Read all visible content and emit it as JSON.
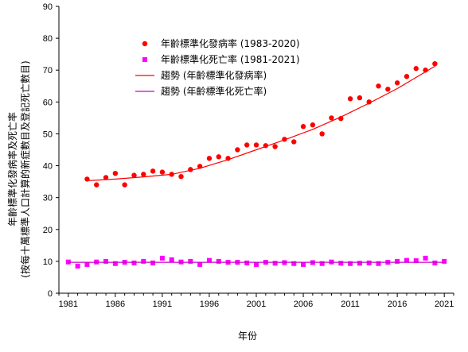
{
  "chart_data": {
    "type": "scatter",
    "title": "",
    "xlabel": "年份",
    "ylabel": [
      "年齡標準化發病率及死亡率",
      "(按每十萬標準人口計算的新症數目及登記死亡數目)"
    ],
    "xlim": [
      1980,
      2022
    ],
    "ylim": [
      0,
      90
    ],
    "x_ticks": [
      1981,
      1986,
      1991,
      1996,
      2001,
      2006,
      2011,
      2016,
      2021
    ],
    "y_ticks": [
      0,
      10,
      20,
      30,
      40,
      50,
      60,
      70,
      80,
      90
    ],
    "grid": false,
    "legend_position": "top-center",
    "series": [
      {
        "name": "年齡標準化發病率 (1983-2020)",
        "marker": "circle",
        "color": "#ff0000",
        "x": [
          1983,
          1984,
          1985,
          1986,
          1987,
          1988,
          1989,
          1990,
          1991,
          1992,
          1993,
          1994,
          1995,
          1996,
          1997,
          1998,
          1999,
          2000,
          2001,
          2002,
          2003,
          2004,
          2005,
          2006,
          2007,
          2008,
          2009,
          2010,
          2011,
          2012,
          2013,
          2014,
          2015,
          2016,
          2017,
          2018,
          2019,
          2020
        ],
        "y": [
          35.8,
          34.0,
          36.3,
          37.6,
          34.0,
          37.0,
          37.3,
          38.3,
          38.0,
          37.3,
          36.6,
          38.8,
          39.8,
          42.3,
          42.8,
          42.3,
          45.0,
          46.5,
          46.5,
          46.3,
          46.0,
          48.3,
          47.5,
          52.3,
          52.8,
          50.0,
          55.0,
          54.8,
          61.0,
          61.3,
          60.0,
          65.0,
          64.0,
          66.0,
          68.0,
          70.5,
          70.0,
          72.0
        ]
      },
      {
        "name": "年齡標準化死亡率 (1981-2021)",
        "marker": "square",
        "color": "#ff00ff",
        "x": [
          1981,
          1982,
          1983,
          1984,
          1985,
          1986,
          1987,
          1988,
          1989,
          1990,
          1991,
          1992,
          1993,
          1994,
          1995,
          1996,
          1997,
          1998,
          1999,
          2000,
          2001,
          2002,
          2003,
          2004,
          2005,
          2006,
          2007,
          2008,
          2009,
          2010,
          2011,
          2012,
          2013,
          2014,
          2015,
          2016,
          2017,
          2018,
          2019,
          2020,
          2021
        ],
        "y": [
          9.8,
          8.5,
          9.0,
          9.8,
          10.0,
          9.3,
          9.7,
          9.5,
          10.0,
          9.5,
          11.0,
          10.5,
          9.8,
          10.0,
          9.0,
          10.3,
          10.0,
          9.7,
          9.7,
          9.5,
          9.0,
          9.7,
          9.4,
          9.6,
          9.3,
          9.0,
          9.6,
          9.3,
          9.8,
          9.4,
          9.3,
          9.4,
          9.5,
          9.3,
          9.7,
          10.0,
          10.3,
          10.2,
          11.0,
          9.5,
          10.0
        ]
      },
      {
        "name": "趨勢 (年齡標準化發病率)",
        "type": "line",
        "color": "#ff0000",
        "x": [
          1983,
          1986,
          1989,
          1992,
          1995,
          1998,
          2001,
          2004,
          2007,
          2010,
          2013,
          2016,
          2020
        ],
        "y": [
          35.3,
          35.8,
          36.5,
          37.3,
          39.2,
          41.9,
          45.0,
          48.1,
          51.4,
          55.3,
          59.6,
          64.2,
          71.2
        ]
      },
      {
        "name": "趨勢 (年齡標準化死亡率)",
        "type": "line",
        "color": "#cc00cc",
        "x": [
          1981,
          2021
        ],
        "y": [
          9.7,
          9.7
        ]
      }
    ]
  }
}
